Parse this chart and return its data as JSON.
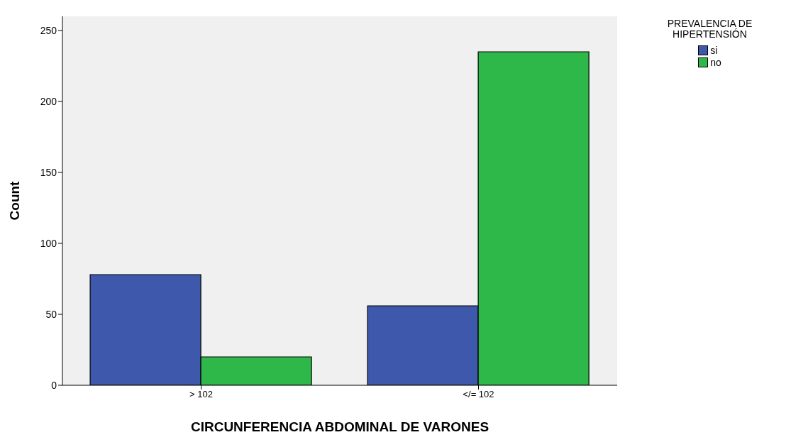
{
  "chart_data": {
    "type": "bar",
    "xlabel": "CIRCUNFERENCIA ABDOMINAL DE VARONES",
    "ylabel": "Count",
    "legend_title": "PREVALENCIA DE HIPERTENSIÓN",
    "categories": [
      "> 102",
      "</= 102"
    ],
    "series": [
      {
        "name": "si",
        "color": "#3e58ab",
        "values": [
          78,
          56
        ]
      },
      {
        "name": "no",
        "color": "#2fb84a",
        "values": [
          20,
          235
        ]
      }
    ],
    "ylim": [
      0,
      260
    ],
    "yticks": [
      0,
      50,
      100,
      150,
      200,
      250
    ],
    "grid": false,
    "legend": "top right"
  }
}
